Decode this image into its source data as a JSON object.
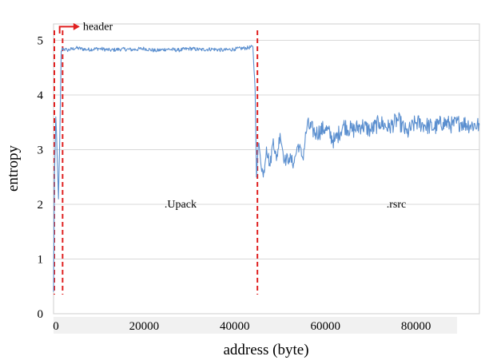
{
  "chart_data": {
    "type": "line",
    "title": "",
    "xlabel": "address (byte)",
    "ylabel": "entropy",
    "xlim": [
      0,
      94000
    ],
    "ylim": [
      0,
      5.3
    ],
    "xticks": [
      0,
      20000,
      40000,
      60000,
      80000
    ],
    "xtick_labels": [
      "0",
      "20000",
      "40000",
      "60000",
      "80000"
    ],
    "yticks": [
      0,
      1,
      2,
      3,
      4,
      5
    ],
    "ytick_labels": [
      "0",
      "1",
      "2",
      "3",
      "4",
      "5"
    ],
    "grid": "horizontal",
    "series": [
      {
        "color": "#5b8fcf",
        "x": [
          0,
          200,
          500,
          800,
          1100,
          1400,
          1700,
          2000,
          3000,
          5000,
          7500,
          10000,
          12500,
          15000,
          17500,
          20000,
          22500,
          25000,
          27500,
          30000,
          32500,
          35000,
          37500,
          40000,
          42500,
          44000,
          44500,
          44800,
          45200,
          45600,
          46300,
          47000,
          47800,
          48500,
          49200,
          50000,
          51000,
          52000,
          53000,
          54000,
          55000,
          56000,
          58000,
          60000,
          62000,
          64000,
          66000,
          68000,
          70000,
          72000,
          74000,
          76000,
          78000,
          80000,
          82000,
          84000,
          86000,
          88000,
          90000,
          92000,
          94000
        ],
        "y": [
          0.4,
          2.5,
          3.6,
          2.9,
          2.1,
          3.3,
          4.8,
          4.85,
          4.82,
          4.86,
          4.83,
          4.85,
          4.82,
          4.84,
          4.83,
          4.85,
          4.81,
          4.84,
          4.82,
          4.85,
          4.83,
          4.84,
          4.82,
          4.84,
          4.86,
          4.88,
          4.1,
          2.5,
          3.1,
          2.9,
          2.5,
          3.05,
          2.7,
          3.2,
          2.8,
          3.3,
          2.8,
          2.85,
          2.75,
          3.1,
          2.85,
          3.45,
          3.3,
          3.4,
          3.15,
          3.45,
          3.35,
          3.45,
          3.35,
          3.5,
          3.4,
          3.55,
          3.3,
          3.5,
          3.45,
          3.4,
          3.5,
          3.45,
          3.5,
          3.45,
          3.45
        ]
      }
    ],
    "markers": [
      {
        "x": 0,
        "color": "#e02020"
      },
      {
        "x": 2000,
        "color": "#e02020"
      },
      {
        "x": 45000,
        "color": "#e02020"
      }
    ],
    "annotations": [
      {
        "text": "header",
        "x": 6500,
        "y": 5.25
      },
      {
        "text": ".Upack",
        "x": 24500,
        "y": 2.0
      },
      {
        "text": ".rsrc",
        "x": 73500,
        "y": 2.0
      }
    ]
  }
}
